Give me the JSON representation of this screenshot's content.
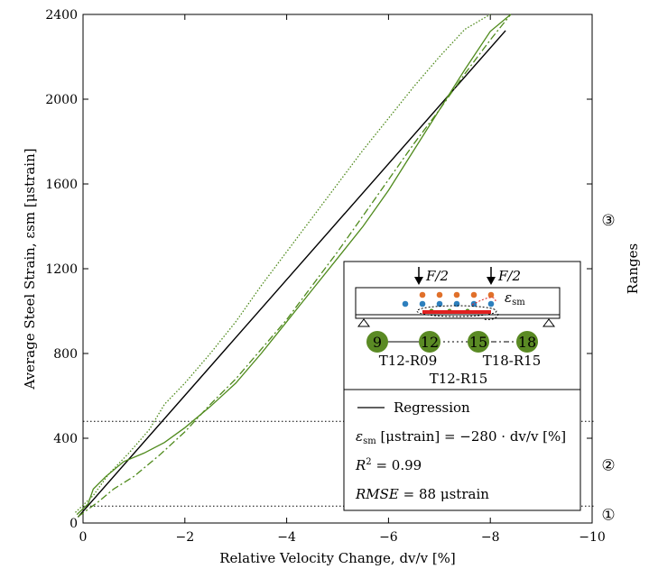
{
  "chart_data": {
    "type": "line",
    "xlabel": "Relative Velocity Change, dv/v [%]",
    "ylabel": "Average Steel Strain, εsm [μstrain]",
    "xlim": [
      0,
      -10
    ],
    "ylim": [
      0,
      2400
    ],
    "xticks": [
      0,
      -2,
      -4,
      -6,
      -8,
      -10
    ],
    "xtick_labels": [
      "0",
      "−2",
      "−4",
      "−6",
      "−8",
      "−10"
    ],
    "yticks": [
      0,
      400,
      800,
      1200,
      1600,
      2000,
      2400
    ],
    "ytick_labels": [
      "0",
      "400",
      "800",
      "1200",
      "1600",
      "2000",
      "2400"
    ],
    "grid": false,
    "right_label": "Ranges",
    "ranges": [
      {
        "label": "①",
        "y": 40
      },
      {
        "label": "②",
        "y": 275
      },
      {
        "label": "③",
        "y": 1430
      }
    ],
    "thresholds": [
      80,
      480
    ],
    "series": [
      {
        "name": "Regression",
        "style": "solid",
        "color": "#000000",
        "x": [
          0.1,
          -8.3
        ],
        "y": [
          28,
          2324
        ]
      },
      {
        "name": "T12-R09",
        "style": "solid",
        "color": "#4f8a1c",
        "x": [
          0.12,
          -0.1,
          -0.2,
          -0.45,
          -0.8,
          -1.2,
          -1.6,
          -2.0,
          -2.5,
          -3.0,
          -3.5,
          -4.0,
          -4.5,
          -5.0,
          -5.5,
          -6.0,
          -6.5,
          -7.0,
          -7.5,
          -8.0,
          -8.4
        ],
        "y": [
          40,
          90,
          160,
          220,
          290,
          330,
          380,
          450,
          550,
          660,
          800,
          950,
          1100,
          1250,
          1400,
          1570,
          1760,
          1950,
          2140,
          2320,
          2400
        ]
      },
      {
        "name": "T18-R15",
        "style": "dashdot",
        "color": "#4f8a1c",
        "x": [
          0.1,
          -0.3,
          -0.6,
          -1.0,
          -1.5,
          -2.0,
          -2.5,
          -3.0,
          -3.5,
          -4.0,
          -4.5,
          -5.0,
          -5.5,
          -6.0,
          -6.5,
          -7.0,
          -7.5,
          -8.0,
          -8.4
        ],
        "y": [
          30,
          100,
          160,
          220,
          320,
          430,
          560,
          680,
          820,
          960,
          1120,
          1280,
          1450,
          1620,
          1790,
          1950,
          2120,
          2280,
          2400
        ]
      },
      {
        "name": "T12-R15",
        "style": "dotted",
        "color": "#4f8a1c",
        "x": [
          0.15,
          -0.2,
          -0.5,
          -0.9,
          -1.3,
          -1.6,
          -2.0,
          -2.5,
          -3.0,
          -3.5,
          -4.0,
          -4.5,
          -5.0,
          -5.5,
          -6.0,
          -6.5,
          -7.0,
          -7.5,
          -8.0
        ],
        "y": [
          50,
          130,
          230,
          330,
          440,
          560,
          660,
          800,
          950,
          1120,
          1280,
          1440,
          1600,
          1760,
          1910,
          2060,
          2200,
          2330,
          2400
        ]
      }
    ],
    "legend": {
      "line_label": "Regression",
      "equation_sym": "ε",
      "equation_sub": "sm",
      "equation_rest": " [μstrain] = −280 · dv/v [%]",
      "r2_sym": "R",
      "r2_sup": "2",
      "r2_rest": " = 0.99",
      "rmse_sym": "RMSE",
      "rmse_rest": " = 88 μstrain"
    },
    "inset": {
      "load_label": "F/2",
      "eps_sym": "ε",
      "eps_sub": "sm",
      "bar_sizes": [
        "9",
        "12",
        "15",
        "18"
      ],
      "specimen_labels": [
        "T12-R09",
        "T18-R15",
        "T12-R15"
      ]
    }
  },
  "colors": {
    "series_green": "#4f8a1c",
    "node_green": "#5a8a24",
    "dot_orange": "#e0702a",
    "dot_blue": "#2d7fbd",
    "rebar_red": "#e02020"
  }
}
